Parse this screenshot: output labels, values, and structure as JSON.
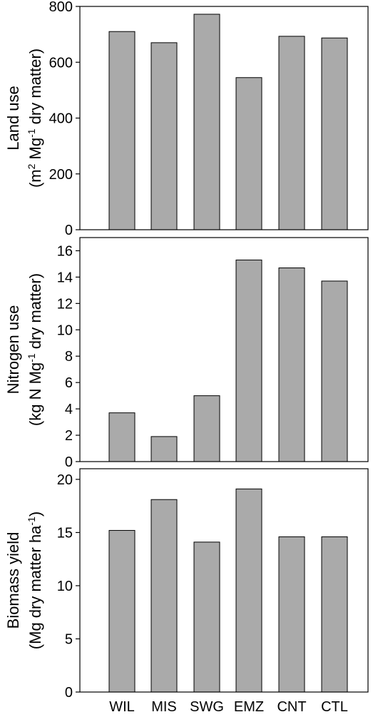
{
  "colors": {
    "bar_fill": "#aaaaaa",
    "bar_stroke": "#000000",
    "frame": "#000000"
  },
  "chart_data": [
    {
      "type": "bar",
      "categories": [
        "WIL",
        "MIS",
        "SWG",
        "EMZ",
        "CNT",
        "CTL"
      ],
      "values": [
        710,
        670,
        772,
        545,
        693,
        687
      ],
      "ylabel_line1": "Land use",
      "ylabel_line2_parts": [
        "(m",
        "2",
        " Mg",
        "-1",
        " dry matter)"
      ],
      "ylim": [
        0,
        800
      ],
      "yticks": [
        0,
        200,
        400,
        600,
        800
      ],
      "grid": false,
      "xlabel": ""
    },
    {
      "type": "bar",
      "categories": [
        "WIL",
        "MIS",
        "SWG",
        "EMZ",
        "CNT",
        "CTL"
      ],
      "values": [
        3.7,
        1.9,
        5.0,
        15.3,
        14.7,
        13.7
      ],
      "ylabel_line1": "Nitrogen use",
      "ylabel_line2_parts": [
        "(kg N Mg",
        "-1",
        " dry matter)"
      ],
      "ylim": [
        0,
        17
      ],
      "yticks": [
        0,
        2,
        4,
        6,
        8,
        10,
        12,
        14,
        16
      ],
      "grid": false,
      "xlabel": ""
    },
    {
      "type": "bar",
      "categories": [
        "WIL",
        "MIS",
        "SWG",
        "EMZ",
        "CNT",
        "CTL"
      ],
      "values": [
        15.2,
        18.1,
        14.1,
        19.1,
        14.6,
        14.6
      ],
      "ylabel_line1": "Biomass yield",
      "ylabel_line2_parts": [
        "(Mg dry matter ha",
        "-1",
        ")"
      ],
      "ylim": [
        0,
        21
      ],
      "yticks": [
        0,
        5,
        10,
        15,
        20
      ],
      "grid": false,
      "xlabel": ""
    }
  ]
}
